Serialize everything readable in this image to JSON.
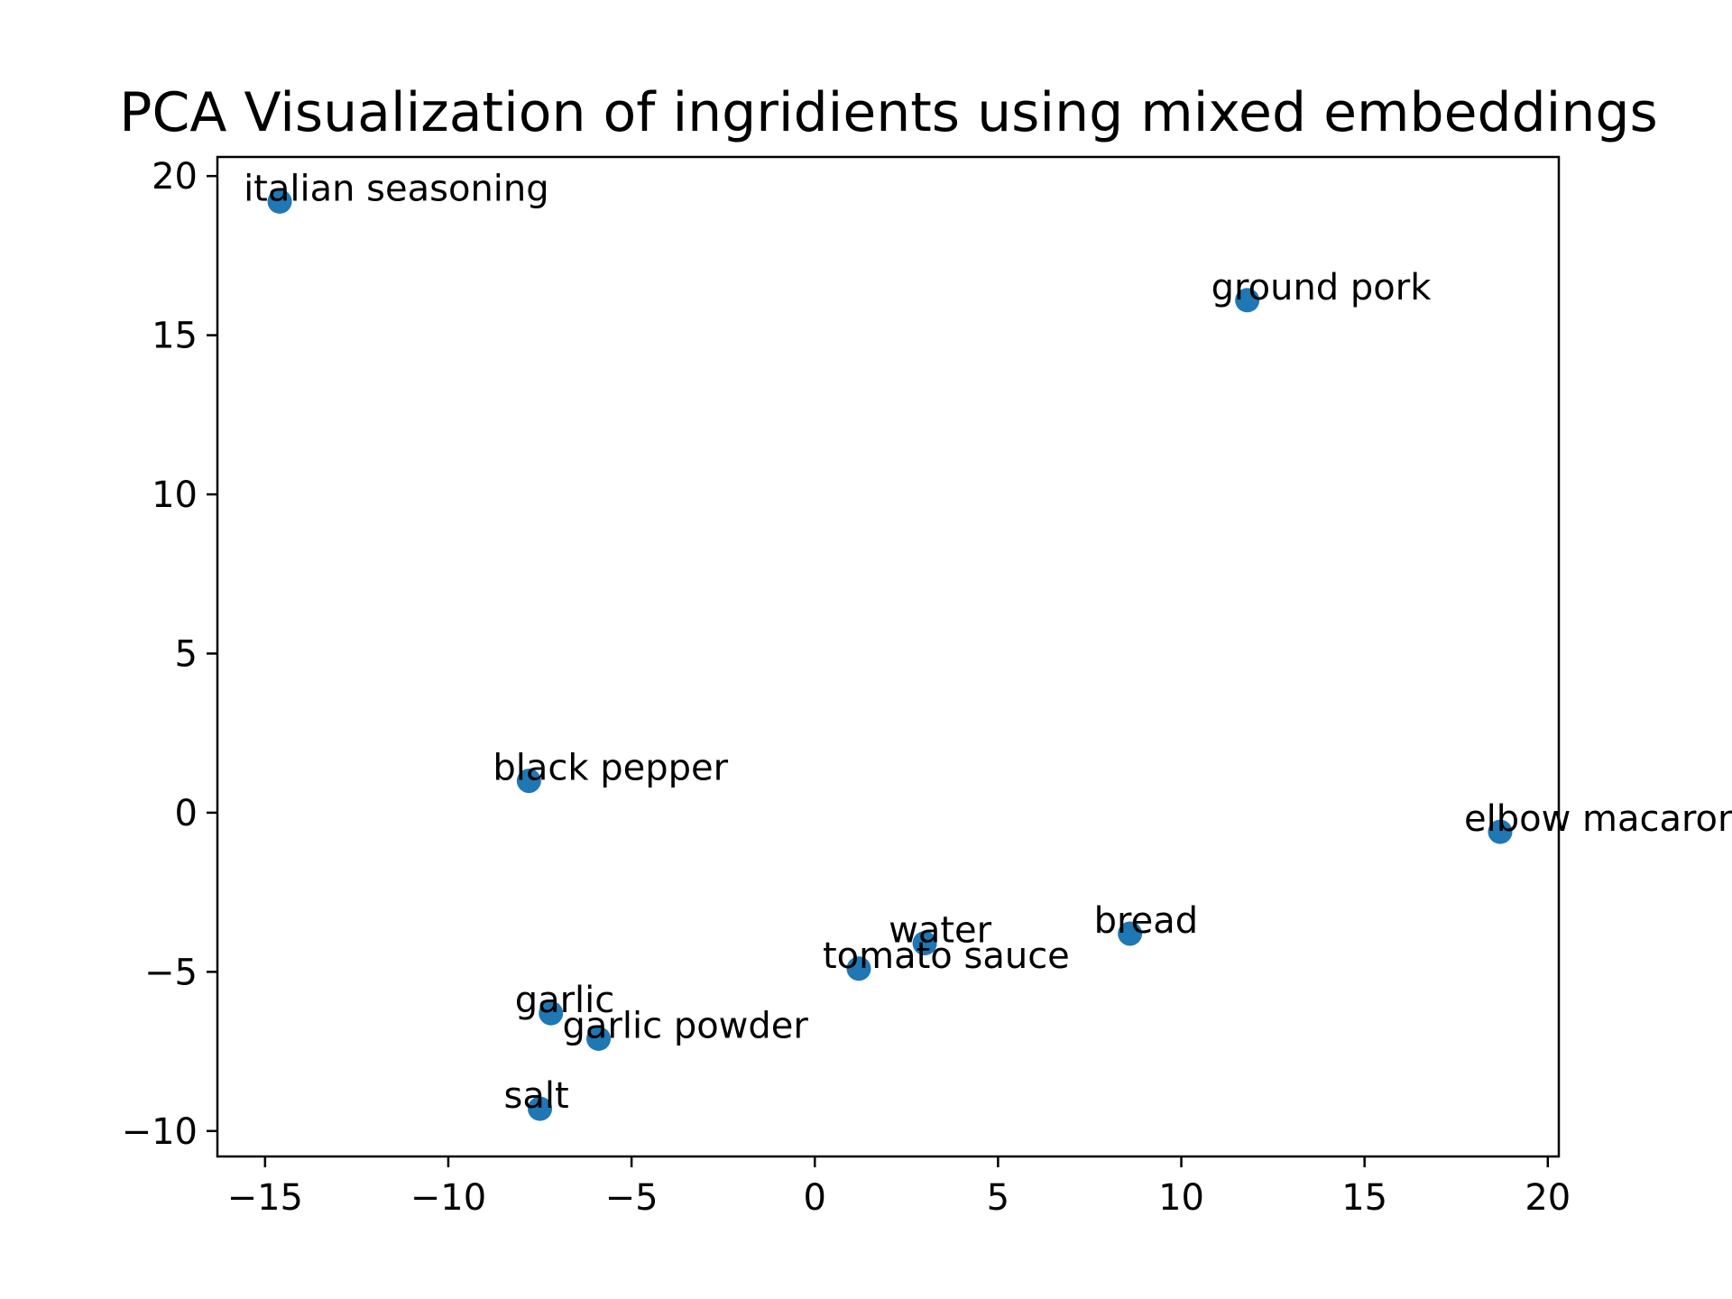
{
  "chart_data": {
    "type": "scatter",
    "title": "PCA Visualization of ingridients using mixed embeddings",
    "xlabel": "",
    "ylabel": "",
    "xlim": [
      -16.3,
      20.3
    ],
    "ylim": [
      -10.8,
      20.6
    ],
    "xticks": [
      -15,
      -10,
      -5,
      0,
      5,
      10,
      15,
      20
    ],
    "yticks": [
      -10,
      -5,
      0,
      5,
      10,
      15,
      20
    ],
    "xtick_labels": [
      "−15",
      "−10",
      "−5",
      "0",
      "5",
      "10",
      "15",
      "20"
    ],
    "ytick_labels": [
      "−10",
      "−5",
      "0",
      "5",
      "10",
      "15",
      "20"
    ],
    "grid": false,
    "marker_color": "#1f77b4",
    "points": [
      {
        "label": "italian seasoning",
        "x": -14.6,
        "y": 19.2
      },
      {
        "label": "ground pork",
        "x": 11.8,
        "y": 16.1
      },
      {
        "label": "black pepper",
        "x": -7.8,
        "y": 1.0
      },
      {
        "label": "elbow macaroni",
        "x": 18.7,
        "y": -0.6
      },
      {
        "label": "bread",
        "x": 8.6,
        "y": -3.8
      },
      {
        "label": "water",
        "x": 3.0,
        "y": -4.1
      },
      {
        "label": "tomato sauce",
        "x": 1.2,
        "y": -4.9
      },
      {
        "label": "garlic",
        "x": -7.2,
        "y": -6.3
      },
      {
        "label": "garlic powder",
        "x": -5.9,
        "y": -7.1
      },
      {
        "label": "salt",
        "x": -7.5,
        "y": -9.3
      }
    ]
  }
}
